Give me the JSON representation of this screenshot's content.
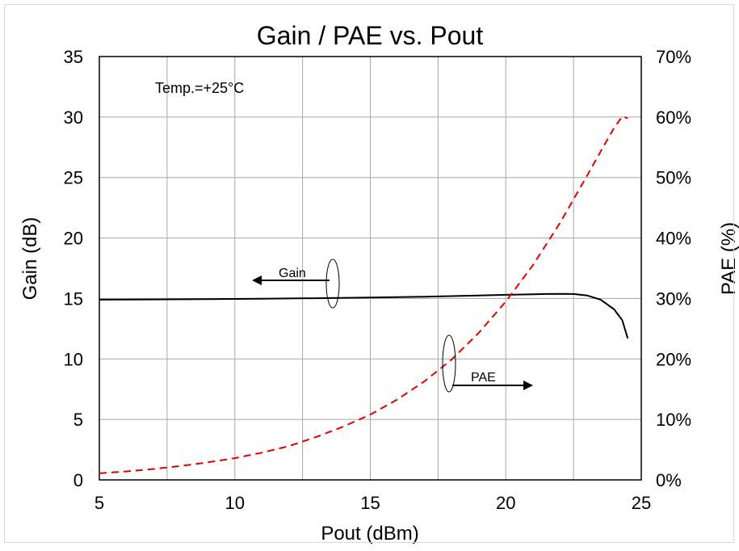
{
  "chart_data": {
    "type": "line",
    "title": "Gain / PAE vs. Pout",
    "xlabel": "Pout (dBm)",
    "ylabel": "Gain (dB)",
    "y2label": "PAE (%)",
    "xlim": [
      5,
      25
    ],
    "ylim": [
      0,
      35
    ],
    "y2lim": [
      0,
      70
    ],
    "xticks": [
      5,
      10,
      15,
      20,
      25
    ],
    "yticks": [
      0,
      5,
      10,
      15,
      20,
      25,
      30,
      35
    ],
    "y2ticks": [
      "0%",
      "10%",
      "20%",
      "30%",
      "40%",
      "50%",
      "60%",
      "70%"
    ],
    "grid": true,
    "legend": "none",
    "annotation": "Temp.=+25°C",
    "series": [
      {
        "name": "Gain",
        "axis": "left",
        "color": "#000000",
        "style": "solid",
        "x": [
          5,
          7,
          9,
          11,
          13,
          15,
          17,
          19,
          20,
          21,
          21.5,
          22,
          22.5,
          23,
          23.5,
          24,
          24.3,
          24.5
        ],
        "y": [
          14.9,
          14.92,
          14.95,
          14.98,
          15.02,
          15.08,
          15.15,
          15.25,
          15.3,
          15.35,
          15.37,
          15.38,
          15.37,
          15.25,
          14.9,
          14.1,
          13.2,
          11.7
        ]
      },
      {
        "name": "PAE",
        "axis": "right",
        "color": "#e00000",
        "style": "dashed",
        "x": [
          5,
          6,
          7,
          8,
          9,
          10,
          11,
          12,
          13,
          14,
          15,
          16,
          17,
          18,
          19,
          20,
          21,
          22,
          23,
          23.5,
          24,
          24.3,
          24.5
        ],
        "y": [
          1.1,
          1.4,
          1.8,
          2.3,
          2.9,
          3.6,
          4.5,
          5.6,
          7.1,
          8.8,
          10.8,
          13.3,
          16.3,
          19.9,
          24.3,
          29.5,
          35.5,
          42.5,
          50.3,
          54.3,
          58.2,
          60.1,
          59.8
        ]
      }
    ],
    "callouts": {
      "gain_label": "Gain",
      "pae_label": "PAE"
    }
  }
}
